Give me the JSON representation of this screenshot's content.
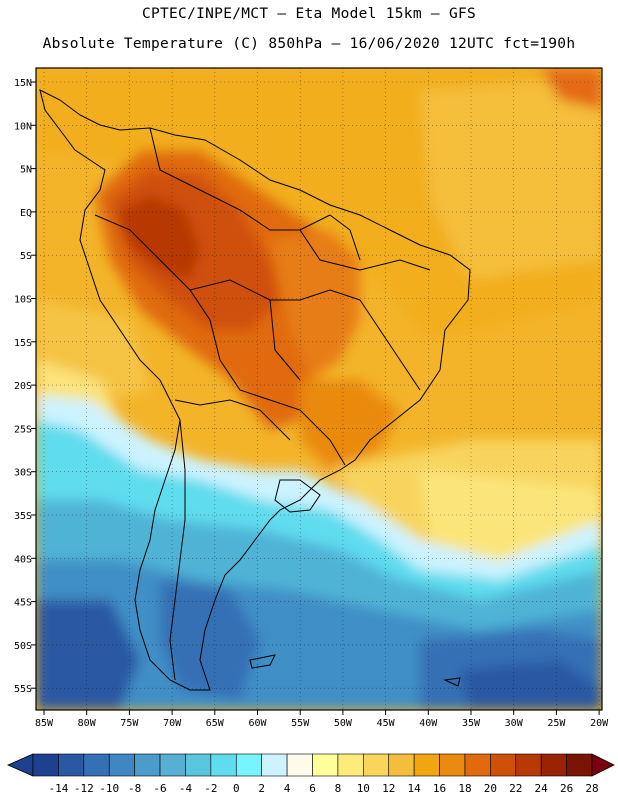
{
  "header": {
    "line1": "CPTEC/INPE/MCT –  Eta Model 15km – GFS",
    "line2": "Absolute Temperature (C) 850hPa – 16/06/2020 12UTC fct=190h"
  },
  "axes": {
    "lat_labels": [
      "15N",
      "10N",
      "5N",
      "EQ",
      "5S",
      "10S",
      "15S",
      "20S",
      "25S",
      "30S",
      "35S",
      "40S",
      "45S",
      "50S",
      "55S"
    ],
    "lon_labels": [
      "85W",
      "80W",
      "75W",
      "70W",
      "65W",
      "60W",
      "55W",
      "50W",
      "45W",
      "40W",
      "35W",
      "30W",
      "25W",
      "20W"
    ]
  },
  "colorbar": {
    "labels": [
      "-14",
      "-12",
      "-10",
      "-8",
      "-6",
      "-4",
      "-2",
      "0",
      "2",
      "4",
      "6",
      "8",
      "10",
      "12",
      "14",
      "16",
      "18",
      "20",
      "22",
      "24",
      "26",
      "28"
    ],
    "colors": [
      "#1f3f8f",
      "#2b58a3",
      "#3470b5",
      "#3f86c2",
      "#4b9bcb",
      "#58afd4",
      "#59c6e0",
      "#5fdcee",
      "#77f4ff",
      "#cdf3ff",
      "#fffbea",
      "#ffff9b",
      "#fdeb7a",
      "#f9d55c",
      "#f3be3e",
      "#f0a511",
      "#ea8a11",
      "#e06a0d",
      "#cf5009",
      "#b73906",
      "#9a2205",
      "#7a1404"
    ],
    "under_color": "#1f3f8f",
    "over_color": "#7a0010"
  }
}
